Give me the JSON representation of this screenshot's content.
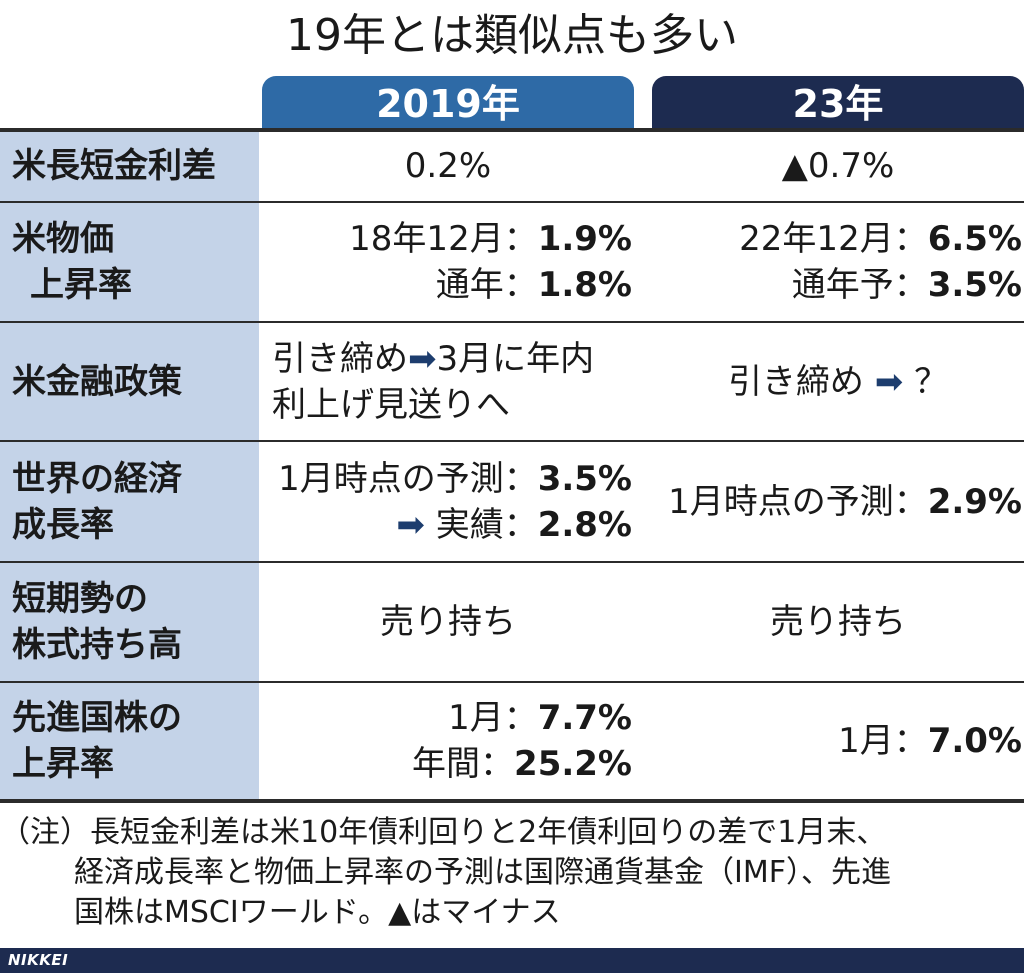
{
  "title": "19年とは類似点も多い",
  "columns": {
    "y2019": "2019年",
    "y2023": "23年"
  },
  "rows": [
    {
      "label": [
        "米長短金利差"
      ],
      "y2019": "0.2%",
      "y2023": "▲0.7%"
    },
    {
      "label": [
        "米物価",
        "上昇率"
      ],
      "y2019": [
        {
          "pre": "18年12月：",
          "num": "1.9%"
        },
        {
          "pre": "通年：",
          "num": "1.8%"
        }
      ],
      "y2023": [
        {
          "pre": "22年12月：",
          "num": "6.5%"
        },
        {
          "pre": "通年予：",
          "num": "3.5%"
        }
      ]
    },
    {
      "label": [
        "米金融政策"
      ],
      "y2019": [
        "引き締め",
        "3月に年内",
        "利上げ見送りへ"
      ],
      "y2023": [
        "引き締め",
        "？"
      ]
    },
    {
      "label": [
        "世界の経済",
        "成長率"
      ],
      "y2019": [
        {
          "pre": "1月時点の予測：",
          "num": "3.5%"
        },
        {
          "pre": "実績：",
          "num": "2.8%"
        }
      ],
      "y2023": [
        {
          "pre": "1月時点の予測：",
          "num": "2.9%"
        }
      ]
    },
    {
      "label": [
        "短期勢の",
        "株式持ち高"
      ],
      "y2019": "売り持ち",
      "y2023": "売り持ち"
    },
    {
      "label": [
        "先進国株の",
        "上昇率"
      ],
      "y2019": [
        {
          "pre": "1月：",
          "num": "7.7%"
        },
        {
          "pre": "年間：",
          "num": "25.2%"
        }
      ],
      "y2023": [
        {
          "pre": "1月：",
          "num": "7.0%"
        }
      ]
    }
  ],
  "note": [
    "（注）長短金利差は米10年債利回りと2年債利回りの差で1月末、",
    "経済成長率と物価上昇率の予測は国際通貨基金（IMF）、先進",
    "国株はMSCIワールド。▲はマイナス"
  ],
  "footer_logo": "NIKKEI",
  "colors": {
    "header_2019": "#2e6aa6",
    "header_23": "#1d2b50",
    "label_bg": "#c4d3e8",
    "arrow": "#1d3d6e"
  },
  "icons": {
    "arrow": "right-arrow-icon"
  }
}
